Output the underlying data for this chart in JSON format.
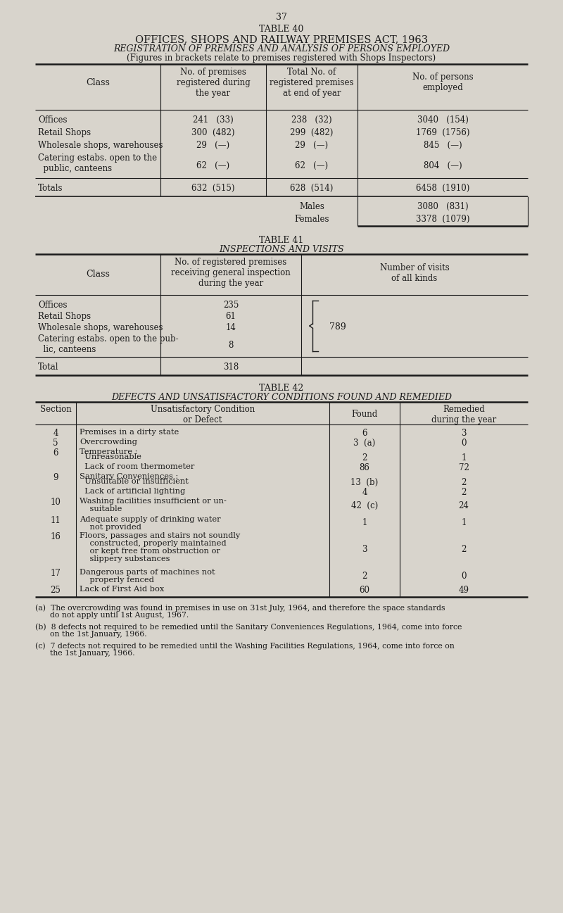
{
  "page_number": "37",
  "bg_color": "#d8d4cc",
  "text_color": "#1a1a1a",
  "table40": {
    "title1": "TABLE 40",
    "title2": "OFFICES, SHOPS AND RAILWAY PREMISES ACT, 1963",
    "title3": "REGISTRATION OF PREMISES AND ANALYSIS OF PERSONS EMPLOYED",
    "title4": "(Figures in brackets relate to premises registered with Shops Inspectors)",
    "rows": [
      [
        "Offices",
        "241   (33)",
        "238   (32)",
        "3040   (154)"
      ],
      [
        "Retail Shops",
        "300  (482)",
        "299  (482)",
        "1769  (1756)"
      ],
      [
        "Wholesale shops, warehouses",
        "29   (—)",
        "29   (—)",
        "845   (—)"
      ],
      [
        "Catering estabs. open to the\n  public, canteens",
        "62   (—)",
        "62   (—)",
        "804   (—)"
      ]
    ],
    "totals_row": [
      "Totals",
      "632  (515)",
      "628  (514)",
      "6458  (1910)"
    ],
    "males_row": [
      "Males",
      "3080   (831)"
    ],
    "females_row": [
      "Females",
      "3378  (1079)"
    ]
  },
  "table41": {
    "title1": "TABLE 41",
    "title2": "INSPECTIONS AND VISITS",
    "rows": [
      [
        "Offices",
        "235"
      ],
      [
        "Retail Shops",
        "61"
      ],
      [
        "Wholesale shops, warehouses",
        "14"
      ],
      [
        "Catering estabs. open to the pub-\n  lic, canteens",
        "8"
      ]
    ],
    "total_row": [
      "Total",
      "318"
    ],
    "visits_value": "789"
  },
  "table42": {
    "title1": "TABLE 42",
    "title2": "DEFECTS AND UNSATISFACTORY CONDITIONS FOUND AND REMEDIED",
    "rows": [
      [
        "4",
        "Premises in a dirty state",
        "6",
        "3"
      ],
      [
        "5",
        "Overcrowding",
        "3  (a)",
        "0"
      ],
      [
        "6",
        "Temperature :",
        "",
        ""
      ],
      [
        "",
        "  Unreasonable",
        "2",
        "1"
      ],
      [
        "",
        "  Lack of room thermometer",
        "86",
        "72"
      ],
      [
        "9",
        "Sanitary Conveniences :",
        "",
        ""
      ],
      [
        "",
        "  Unsuitable or insufficient",
        "13  (b)",
        "2"
      ],
      [
        "",
        "  Lack of artificial lighting",
        "4",
        "2"
      ],
      [
        "10",
        "Washing facilities insufficient or un-\n    suitable",
        "42  (c)",
        "24"
      ],
      [
        "11",
        "Adequate supply of drinking water\n    not provided",
        "1",
        "1"
      ],
      [
        "16",
        "Floors, passages and stairs not soundly\n    constructed, properly maintained\n    or kept free from obstruction or\n    slippery substances",
        "3",
        "2"
      ],
      [
        "17",
        "Dangerous parts of machines not\n    properly fenced",
        "2",
        "0"
      ],
      [
        "25",
        "Lack of First Aid box",
        "60",
        "49"
      ]
    ],
    "footnotes": [
      "(a)  The overcrowding was found in premises in use on 31st July, 1964, and therefore the space standards\n      do not apply until 1st August, 1967.",
      "(b)  8 defects not required to be remedied until the Sanitary Conveniences Regulations, 1964, come into force\n      on the 1st January, 1966.",
      "(c)  7 defects not required to be remedied until the Washing Facilities Regulations, 1964, come into force on\n      the 1st January, 1966."
    ]
  }
}
